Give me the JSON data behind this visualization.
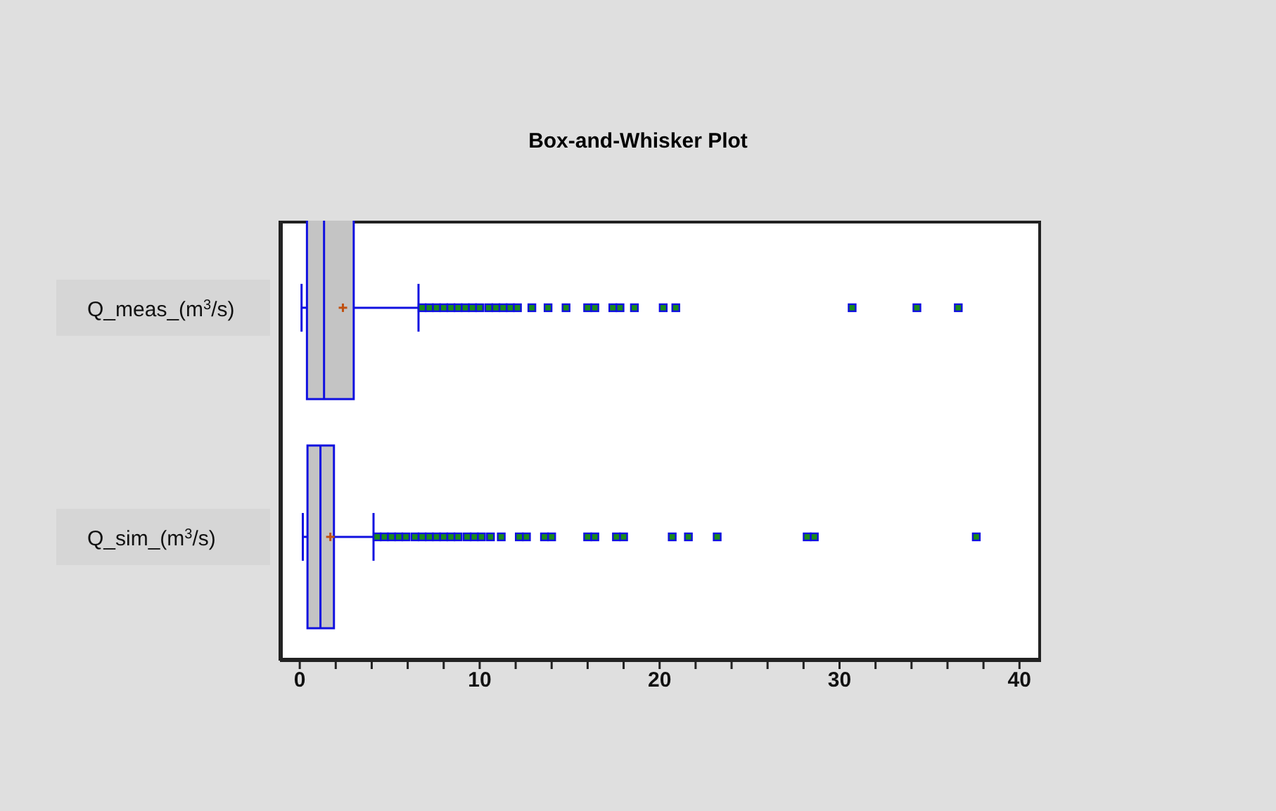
{
  "chart_data": {
    "type": "box",
    "title": "Box-and-Whisker Plot",
    "orientation": "horizontal",
    "categories": [
      "Q_meas_(m$^{3}$/s)",
      "Q_sim_(m$^{3}$/s)"
    ],
    "boxes": [
      {
        "low": 0.1,
        "q1": 0.4,
        "median": 1.35,
        "q3": 3.0,
        "high": 6.6,
        "mean": 2.4,
        "outliers": [
          6.8,
          7.2,
          7.6,
          8.0,
          8.4,
          8.8,
          9.2,
          9.6,
          10.0,
          10.5,
          10.9,
          11.3,
          11.7,
          12.1,
          12.9,
          13.8,
          14.8,
          16.0,
          16.4,
          17.4,
          17.8,
          18.6,
          20.2,
          20.9,
          30.7,
          34.3,
          36.6
        ]
      },
      {
        "low": 0.17,
        "q1": 0.43,
        "median": 1.15,
        "q3": 1.9,
        "high": 4.1,
        "mean": 1.7,
        "outliers": [
          4.3,
          4.7,
          5.1,
          5.5,
          5.9,
          6.4,
          6.8,
          7.2,
          7.6,
          8.0,
          8.4,
          8.8,
          9.3,
          9.7,
          10.1,
          10.6,
          11.2,
          12.2,
          12.6,
          13.6,
          14.0,
          16.0,
          16.4,
          17.6,
          18.0,
          20.7,
          21.6,
          23.2,
          28.2,
          28.6,
          37.6
        ]
      }
    ],
    "color": "#1010e0",
    "xlim": [
      -1.1,
      41.2
    ],
    "xticks": [
      0,
      {
        "value": 2,
        "label": null
      },
      {
        "value": 4,
        "label": null
      },
      {
        "value": 6,
        "label": null
      },
      {
        "value": 8,
        "label": null
      },
      10,
      {
        "value": 12,
        "label": null
      },
      {
        "value": 14,
        "label": null
      },
      {
        "value": 16,
        "label": null
      },
      {
        "value": 18,
        "label": null
      },
      20,
      {
        "value": 22,
        "label": null
      },
      {
        "value": 24,
        "label": null
      },
      {
        "value": 26,
        "label": null
      },
      {
        "value": 28,
        "label": null
      },
      30,
      {
        "value": 32,
        "label": null
      },
      {
        "value": 34,
        "label": null
      },
      {
        "value": 36,
        "label": null
      },
      {
        "value": 38,
        "label": null
      },
      40
    ],
    "grid": false
  }
}
